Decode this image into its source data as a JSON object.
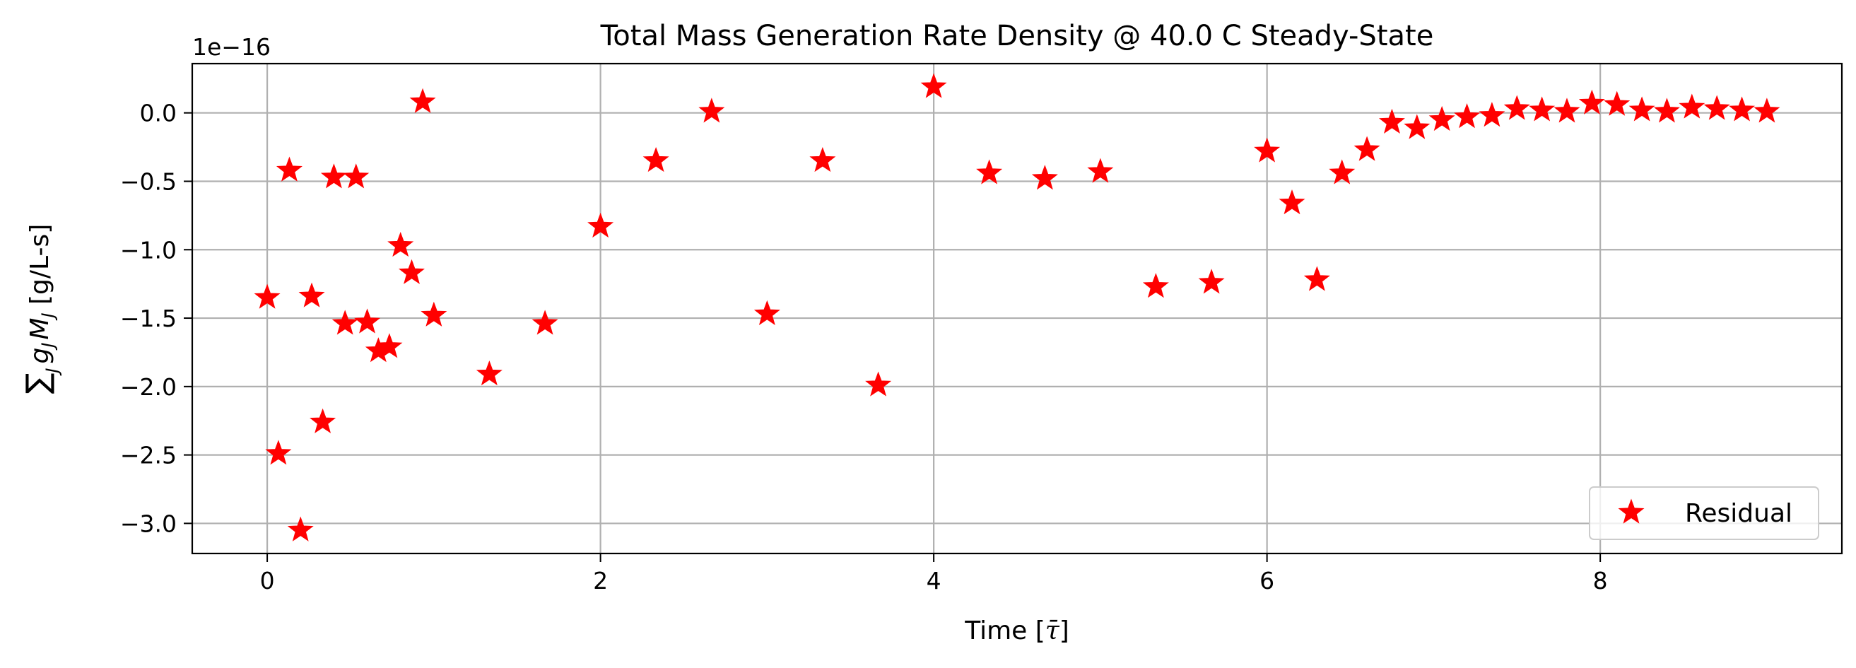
{
  "chart_data": {
    "type": "scatter",
    "title": "Total Mass Generation Rate Density @ 40.0 C Steady-State",
    "xlabel": "Time [τ̄]",
    "ylabel": "∑ g_J M_J [g/L-s]",
    "ylabel_parts": {
      "sum": "∑",
      "sub_sum": "J",
      "g": "g",
      "sub_g": "J",
      "m": "M",
      "sub_m": "J",
      "units": " [g/L-s]"
    },
    "xlabel_parts": {
      "prefix": "Time [",
      "symbol": "τ̄",
      "suffix": "]"
    },
    "y_offset_label": "1e−16",
    "y_scale": 1e-16,
    "xlim": [
      -0.45,
      9.45
    ],
    "ylim": [
      -3.22,
      0.36
    ],
    "x_ticks": [
      0,
      2,
      4,
      6,
      8
    ],
    "x_tick_labels": [
      "0",
      "2",
      "4",
      "6",
      "8"
    ],
    "y_ticks": [
      0.0,
      -0.5,
      -1.0,
      -1.5,
      -2.0,
      -2.5,
      -3.0
    ],
    "y_tick_labels": [
      "0.0",
      "−0.5",
      "−1.0",
      "−1.5",
      "−2.0",
      "−2.5",
      "−3.0"
    ],
    "grid": true,
    "legend_position": "lower right",
    "series": [
      {
        "name": "Residual",
        "color": "#ff0000",
        "marker": "star",
        "x": [
          0.0,
          0.067,
          0.133,
          0.2,
          0.267,
          0.333,
          0.4,
          0.467,
          0.533,
          0.6,
          0.667,
          0.733,
          0.8,
          0.867,
          0.933,
          1.0,
          1.333,
          1.667,
          2.0,
          2.333,
          2.667,
          3.0,
          3.333,
          3.667,
          4.0,
          4.333,
          4.667,
          5.0,
          5.333,
          5.667,
          6.0,
          6.15,
          6.3,
          6.45,
          6.6,
          6.75,
          6.9,
          7.05,
          7.2,
          7.35,
          7.5,
          7.65,
          7.8,
          7.95,
          8.1,
          8.25,
          8.4,
          8.55,
          8.7,
          8.85,
          9.0
        ],
        "values": [
          -1.35,
          -2.49,
          -0.42,
          -3.05,
          -1.34,
          -2.26,
          -0.47,
          -1.54,
          -0.47,
          -1.53,
          -1.74,
          -1.71,
          -0.97,
          -1.17,
          0.08,
          -1.48,
          -1.91,
          -1.54,
          -0.83,
          -0.35,
          0.01,
          -1.47,
          -0.35,
          -1.99,
          0.19,
          -0.44,
          -0.48,
          -0.43,
          -1.27,
          -1.24,
          -0.28,
          -0.66,
          -1.22,
          -0.44,
          -0.27,
          -0.07,
          -0.11,
          -0.05,
          -0.03,
          -0.02,
          0.03,
          0.02,
          0.01,
          0.07,
          0.06,
          0.02,
          0.01,
          0.04,
          0.03,
          0.02,
          0.01
        ]
      }
    ]
  }
}
